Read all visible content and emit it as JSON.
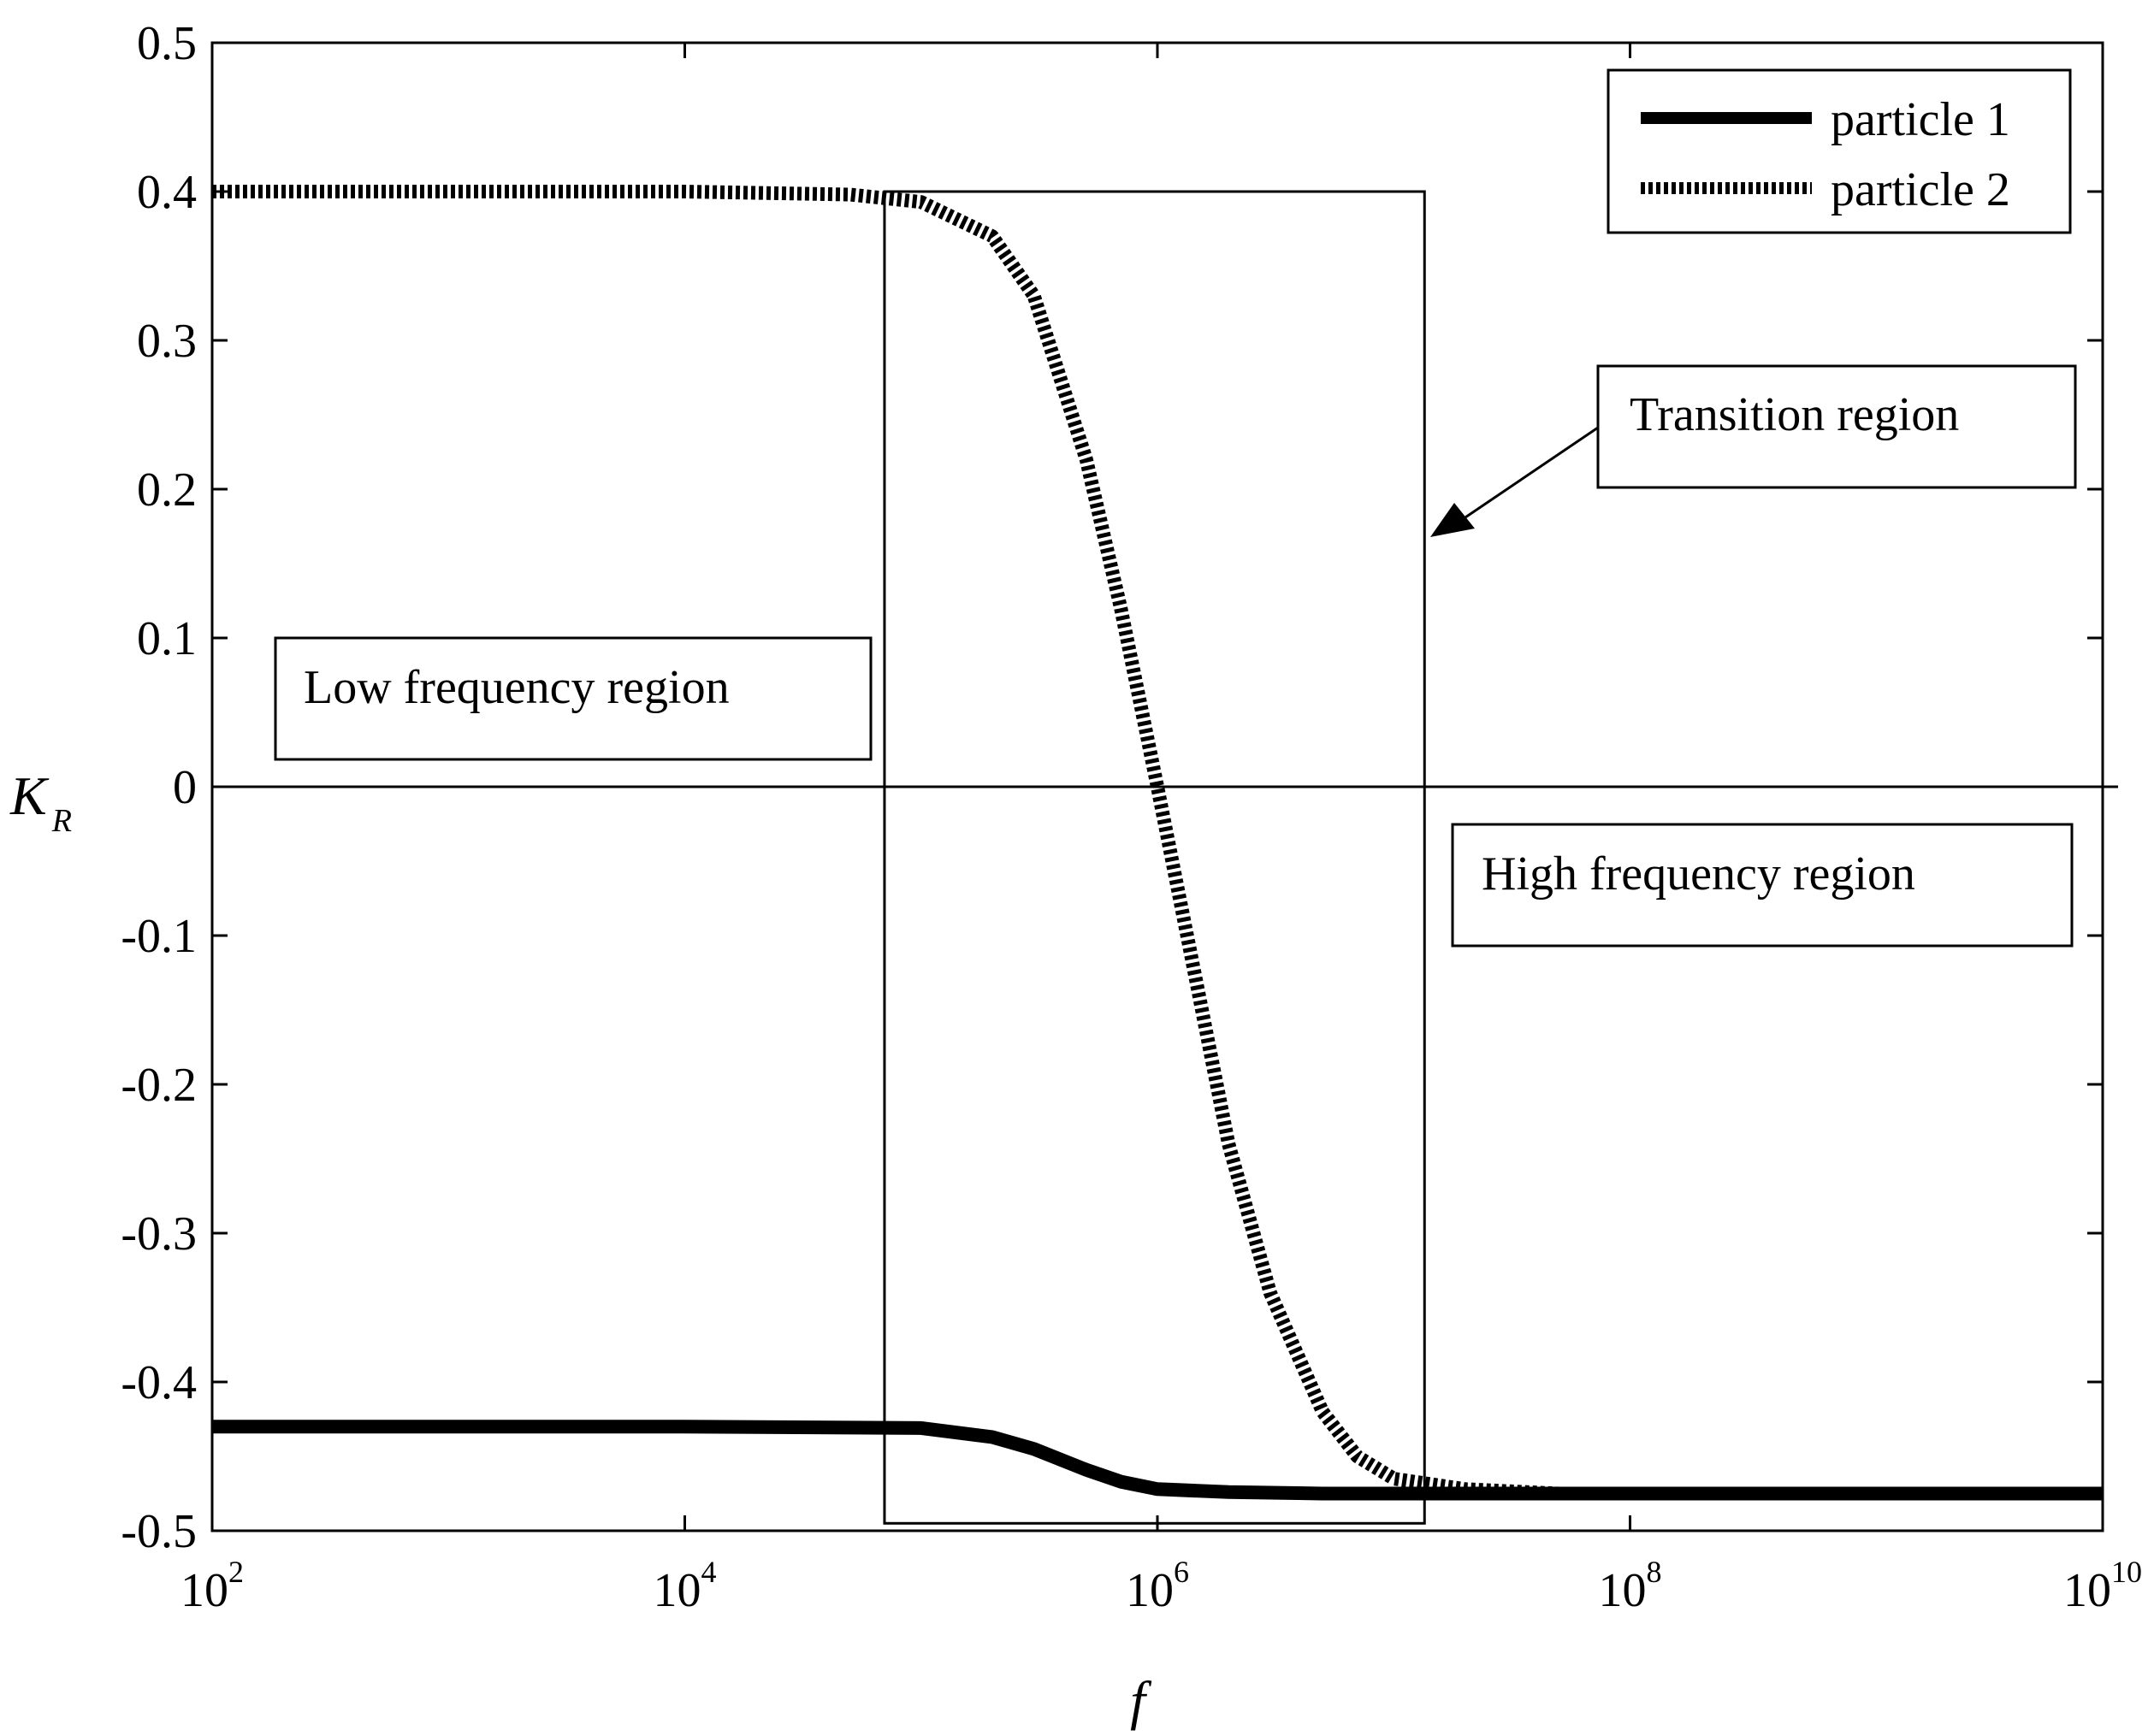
{
  "chart_data": {
    "type": "line",
    "title": "",
    "xlabel": "f",
    "ylabel": {
      "main": "K",
      "subscript": "R"
    },
    "x_scale": "log",
    "xlim": [
      100,
      10000000000
    ],
    "ylim": [
      -0.5,
      0.5
    ],
    "x_ticks": [
      {
        "base": "10",
        "exp": "2",
        "value": 100
      },
      {
        "base": "10",
        "exp": "4",
        "value": 10000
      },
      {
        "base": "10",
        "exp": "6",
        "value": 1000000
      },
      {
        "base": "10",
        "exp": "8",
        "value": 100000000
      },
      {
        "base": "10",
        "exp": "10",
        "value": 10000000000
      }
    ],
    "y_ticks": [
      "0.5",
      "0.4",
      "0.3",
      "0.2",
      "0.1",
      "0",
      "-0.1",
      "-0.2",
      "-0.3",
      "-0.4",
      "-0.5"
    ],
    "y_tick_values": [
      0.5,
      0.4,
      0.3,
      0.2,
      0.1,
      0,
      -0.1,
      -0.2,
      -0.3,
      -0.4,
      -0.5
    ],
    "grid": false,
    "legend_position": "top-right",
    "series": [
      {
        "name": "particle 1",
        "style": "solid",
        "color": "#000000",
        "x": [
          100,
          1000,
          10000,
          100000,
          200000,
          300000,
          500000,
          700000,
          1000000,
          2000000,
          5000000,
          10000000,
          100000000,
          1000000000,
          10000000000
        ],
        "y": [
          -0.43,
          -0.43,
          -0.43,
          -0.431,
          -0.437,
          -0.445,
          -0.459,
          -0.467,
          -0.472,
          -0.474,
          -0.475,
          -0.475,
          -0.475,
          -0.475,
          -0.475
        ]
      },
      {
        "name": "particle 2",
        "style": "dotted",
        "color": "#000000",
        "x": [
          100,
          1000,
          10000,
          50000,
          100000,
          200000,
          300000,
          500000,
          700000,
          1000000,
          1500000,
          2000000,
          3000000,
          5000000,
          7000000,
          10000000,
          20000000,
          50000000,
          100000000,
          1000000000,
          10000000000
        ],
        "y": [
          0.4,
          0.4,
          0.4,
          0.398,
          0.393,
          0.37,
          0.33,
          0.22,
          0.12,
          0.0,
          -0.14,
          -0.24,
          -0.34,
          -0.42,
          -0.45,
          -0.465,
          -0.472,
          -0.475,
          -0.475,
          -0.475,
          -0.475
        ]
      }
    ],
    "annotations": [
      {
        "label": "Transition region"
      },
      {
        "label": "Low frequency region"
      },
      {
        "label": "High frequency region"
      }
    ],
    "transition_box": {
      "x0": 70000,
      "x1": 13500000,
      "y0": -0.495,
      "y1": 0.4
    }
  }
}
